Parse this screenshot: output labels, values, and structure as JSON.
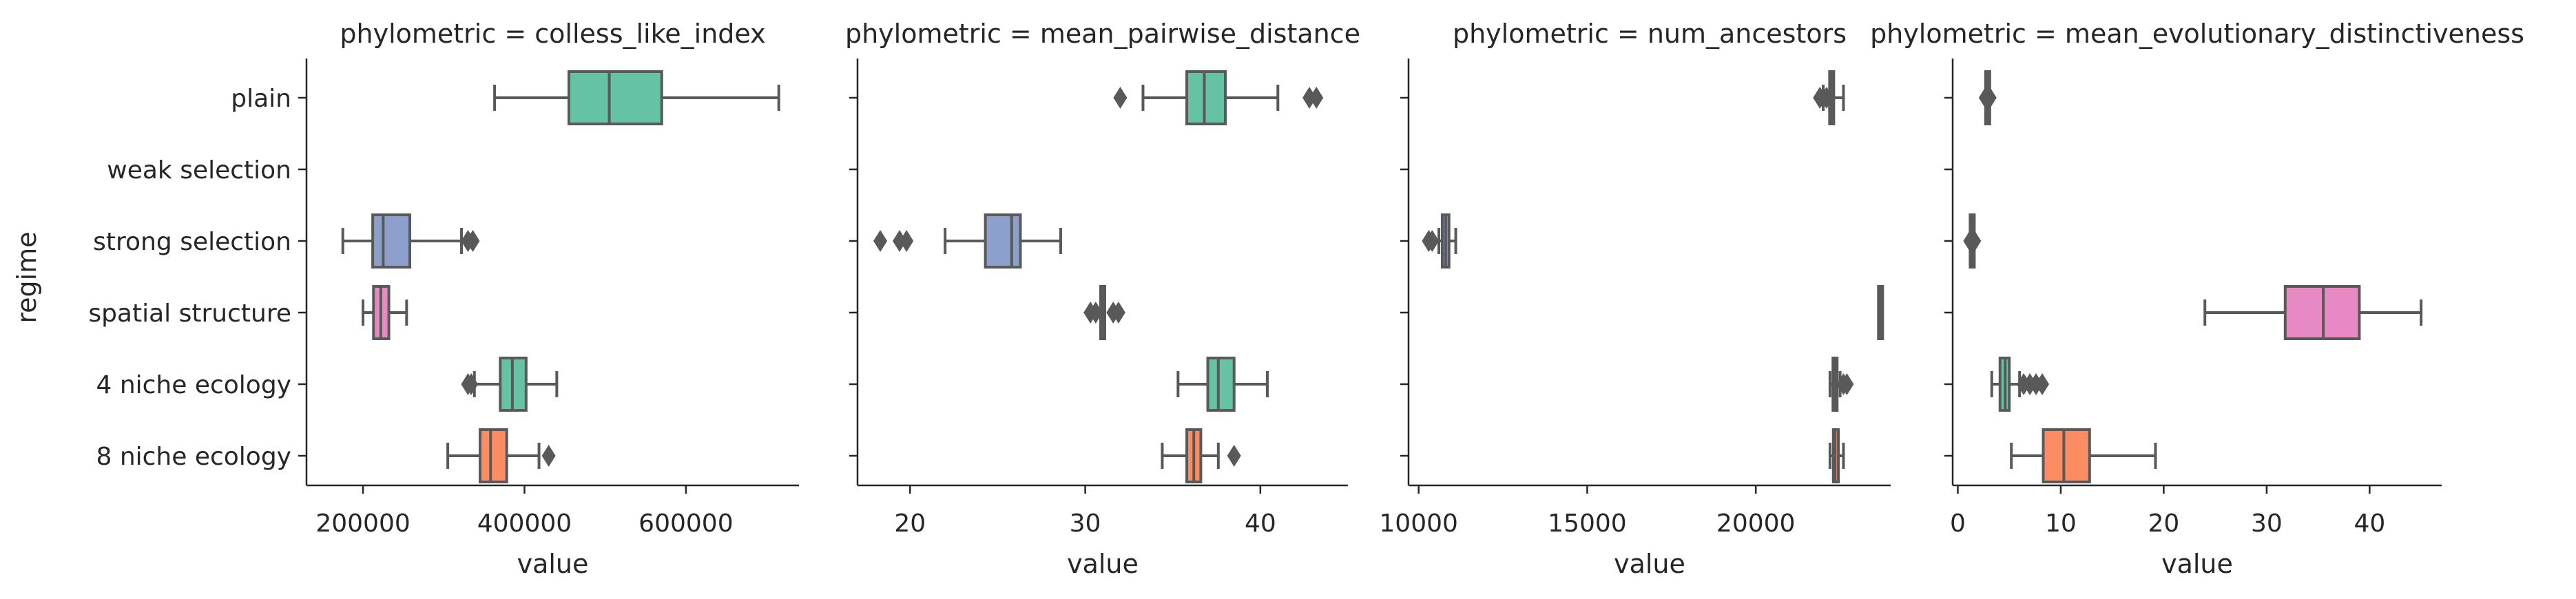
{
  "colors": {
    "green": "#66c2a5",
    "orange": "#fc8d62",
    "blue": "#8da0cb",
    "pink": "#e78ac3",
    "stroke": "#595959"
  },
  "chart_data": {
    "type": "box",
    "ylabel": "regime",
    "categories": [
      "plain",
      "weak selection",
      "strong selection",
      "spatial structure",
      "4 niche ecology",
      "8 niche ecology"
    ],
    "facets": [
      {
        "title": "phylometric = colless_like_index",
        "xlabel": "value",
        "xlim": [
          130000,
          740000
        ],
        "xticks": [
          200000,
          400000,
          600000
        ],
        "xtick_labels": [
          "200000",
          "400000",
          "600000"
        ],
        "boxes": [
          {
            "category": "plain",
            "color": "green",
            "whislo": 363000,
            "q1": 455000,
            "med": 505000,
            "q3": 570000,
            "whishi": 715000,
            "fliers": []
          },
          {
            "category": "strong selection",
            "color": "blue",
            "whislo": 175000,
            "q1": 212000,
            "med": 225000,
            "q3": 258000,
            "whishi": 322000,
            "fliers": [
              330000,
              336000
            ]
          },
          {
            "category": "spatial structure",
            "color": "pink",
            "whislo": 200000,
            "q1": 213000,
            "med": 222000,
            "q3": 232000,
            "whishi": 254000,
            "fliers": []
          },
          {
            "category": "4 niche ecology",
            "color": "green",
            "whislo": 338000,
            "q1": 370000,
            "med": 385000,
            "q3": 402000,
            "whishi": 440000,
            "fliers": [
              330000,
              334000
            ]
          },
          {
            "category": "8 niche ecology",
            "color": "orange",
            "whislo": 305000,
            "q1": 345000,
            "med": 358000,
            "q3": 378000,
            "whishi": 418000,
            "fliers": [
              430000
            ]
          }
        ]
      },
      {
        "title": "phylometric = mean_pairwise_distance",
        "xlabel": "value",
        "xlim": [
          17,
          45
        ],
        "xticks": [
          20,
          30,
          40
        ],
        "xtick_labels": [
          "20",
          "30",
          "40"
        ],
        "boxes": [
          {
            "category": "plain",
            "color": "green",
            "whislo": 33.3,
            "q1": 35.8,
            "med": 36.8,
            "q3": 38.0,
            "whishi": 41.0,
            "fliers": [
              32.0,
              42.8,
              43.2
            ]
          },
          {
            "category": "strong selection",
            "color": "blue",
            "whislo": 22.0,
            "q1": 24.3,
            "med": 25.8,
            "q3": 26.3,
            "whishi": 28.6,
            "fliers": [
              18.3,
              19.4,
              19.8
            ]
          },
          {
            "category": "spatial structure",
            "color": "pink",
            "whislo": 31.0,
            "q1": 31.0,
            "med": 31.0,
            "q3": 31.0,
            "whishi": 31.0,
            "fliers": [
              30.3,
              30.6,
              31.6,
              31.9
            ]
          },
          {
            "category": "4 niche ecology",
            "color": "green",
            "whislo": 35.3,
            "q1": 37.0,
            "med": 37.6,
            "q3": 38.5,
            "whishi": 40.4,
            "fliers": []
          },
          {
            "category": "8 niche ecology",
            "color": "orange",
            "whislo": 34.4,
            "q1": 35.8,
            "med": 36.2,
            "q3": 36.6,
            "whishi": 37.6,
            "fliers": [
              38.5
            ]
          }
        ]
      },
      {
        "title": "phylometric = num_ancestors",
        "xlabel": "value",
        "xlim": [
          9700,
          24000
        ],
        "xticks": [
          10000,
          15000,
          20000
        ],
        "xtick_labels": [
          "10000",
          "15000",
          "20000"
        ],
        "boxes": [
          {
            "category": "plain",
            "color": "green",
            "whislo": 22000,
            "q1": 22200,
            "med": 22250,
            "q3": 22300,
            "whishi": 22600,
            "fliers": [
              21900,
              22000,
              22100
            ]
          },
          {
            "category": "strong selection",
            "color": "blue",
            "whislo": 10600,
            "q1": 10700,
            "med": 10800,
            "q3": 10900,
            "whishi": 11100,
            "fliers": [
              10300,
              10400
            ]
          },
          {
            "category": "spatial structure",
            "color": "pink",
            "whislo": 23650,
            "q1": 23680,
            "med": 23700,
            "q3": 23720,
            "whishi": 23750,
            "fliers": []
          },
          {
            "category": "4 niche ecology",
            "color": "green",
            "whislo": 22200,
            "q1": 22300,
            "med": 22350,
            "q3": 22400,
            "whishi": 22500,
            "fliers": [
              22600,
              22700
            ]
          },
          {
            "category": "8 niche ecology",
            "color": "orange",
            "whislo": 22200,
            "q1": 22300,
            "med": 22350,
            "q3": 22450,
            "whishi": 22600,
            "fliers": []
          }
        ]
      },
      {
        "title": "phylometric = mean_evolutionary_distinctiveness",
        "xlabel": "value",
        "xlim": [
          -0.5,
          47
        ],
        "xticks": [
          0,
          10,
          20,
          30,
          40
        ],
        "xtick_labels": [
          "0",
          "10",
          "20",
          "30",
          "40"
        ],
        "boxes": [
          {
            "category": "plain",
            "color": "green",
            "whislo": 2.9,
            "q1": 2.9,
            "med": 2.9,
            "q3": 2.9,
            "whishi": 2.9,
            "fliers": [
              2.7,
              3.1
            ]
          },
          {
            "category": "strong selection",
            "color": "blue",
            "whislo": 1.4,
            "q1": 1.4,
            "med": 1.4,
            "q3": 1.4,
            "whishi": 1.4,
            "fliers": [
              1.2,
              1.6
            ]
          },
          {
            "category": "spatial structure",
            "color": "pink",
            "whislo": 24.0,
            "q1": 31.8,
            "med": 35.5,
            "q3": 39.0,
            "whishi": 45.0,
            "fliers": []
          },
          {
            "category": "4 niche ecology",
            "color": "green",
            "whislo": 3.3,
            "q1": 4.1,
            "med": 4.6,
            "q3": 5.0,
            "whishi": 6.0,
            "fliers": [
              6.4,
              7.0,
              7.6,
              8.2
            ]
          },
          {
            "category": "8 niche ecology",
            "color": "orange",
            "whislo": 5.2,
            "q1": 8.3,
            "med": 10.3,
            "q3": 12.8,
            "whishi": 19.2,
            "fliers": []
          }
        ]
      }
    ]
  }
}
